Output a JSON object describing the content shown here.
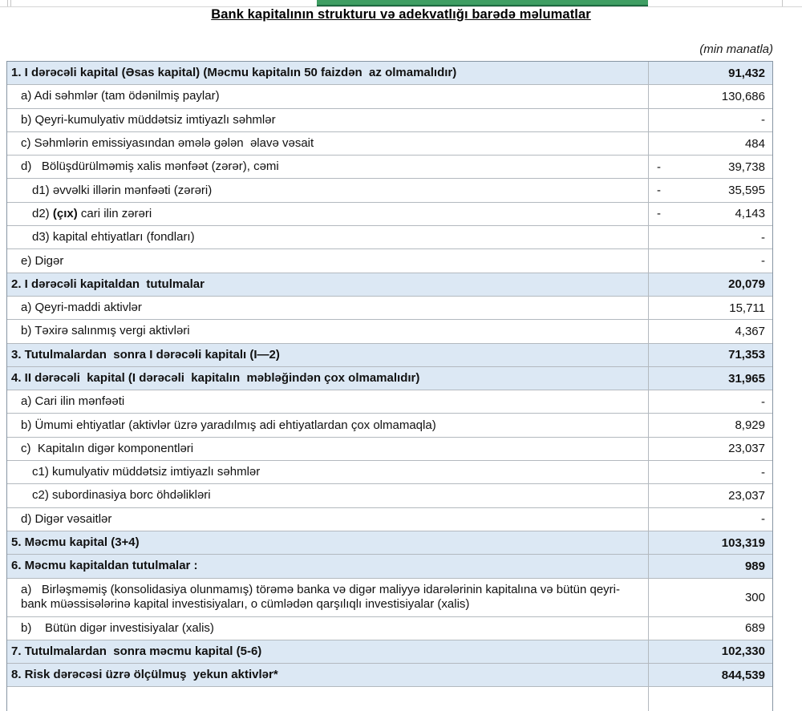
{
  "page": {
    "title": "Bank kapitalının strukturu və adekvatlığı barədə məlumatlar",
    "unit_note": "(min manatla)"
  },
  "colors": {
    "section_row_bg": "#dce8f4",
    "table_border": "#8795a3",
    "grid_border": "#b3b9bf",
    "green_cell_fill": "#3f9e63",
    "green_cell_border": "#1c6a40"
  },
  "table": {
    "rows": [
      {
        "style": "section",
        "indent": 0,
        "segments": [
          {
            "text": "1. I dərəcəli kapital",
            "bold": true
          },
          {
            "text": " (Əsas kapital) (Məcmu kapitalın 50 faizdən  az olmamalıdır)",
            "bold": false
          }
        ],
        "value": "91,432",
        "value_bold": true,
        "neg": false,
        "tall": false
      },
      {
        "style": "item",
        "indent": 1,
        "segments": [
          {
            "text": "a) Adi səhmlər (tam ödənilmiş paylar)",
            "bold": false
          }
        ],
        "value": "130,686",
        "value_bold": false,
        "neg": false,
        "tall": false
      },
      {
        "style": "item",
        "indent": 1,
        "segments": [
          {
            "text": "b) Qeyri-kumulyativ müddətsiz imtiyazlı səhmlər",
            "bold": false
          }
        ],
        "value": "-",
        "value_bold": false,
        "neg": false,
        "tall": false
      },
      {
        "style": "item",
        "indent": 1,
        "segments": [
          {
            "text": "c) Səhmlərin emissiyasından əmələ gələn  əlavə vəsait",
            "bold": false
          }
        ],
        "value": "484",
        "value_bold": false,
        "neg": false,
        "tall": false
      },
      {
        "style": "item",
        "indent": 1,
        "segments": [
          {
            "text": "d)   Bölüşdürülməmiş xalis mənfəət (zərər), cəmi",
            "bold": false
          }
        ],
        "value": "39,738",
        "value_bold": false,
        "neg": true,
        "tall": false
      },
      {
        "style": "item",
        "indent": 2,
        "segments": [
          {
            "text": "d1) əvvəlki illərin mənfəəti (zərəri)",
            "bold": false
          }
        ],
        "value": "35,595",
        "value_bold": false,
        "neg": true,
        "tall": false
      },
      {
        "style": "item",
        "indent": 2,
        "segments": [
          {
            "text": "d2) ",
            "bold": false
          },
          {
            "text": "(çıx)",
            "bold": true
          },
          {
            "text": " cari ilin zərəri",
            "bold": false
          }
        ],
        "value": "4,143",
        "value_bold": false,
        "neg": true,
        "tall": false
      },
      {
        "style": "item",
        "indent": 2,
        "segments": [
          {
            "text": "d3) kapital ehtiyatları (fondları)",
            "bold": false
          }
        ],
        "value": "-",
        "value_bold": false,
        "neg": false,
        "tall": false
      },
      {
        "style": "item",
        "indent": 1,
        "segments": [
          {
            "text": "e) Digər",
            "bold": false
          }
        ],
        "value": "-",
        "value_bold": false,
        "neg": false,
        "tall": false
      },
      {
        "style": "section",
        "indent": 0,
        "segments": [
          {
            "text": "2. I dərəcəli kapitaldan  tutulmalar",
            "bold": true
          }
        ],
        "value": "20,079",
        "value_bold": true,
        "neg": false,
        "tall": false
      },
      {
        "style": "item",
        "indent": 1,
        "segments": [
          {
            "text": "a) Qeyri-maddi aktivlər",
            "bold": false
          }
        ],
        "value": "15,711",
        "value_bold": false,
        "neg": false,
        "tall": false
      },
      {
        "style": "item",
        "indent": 1,
        "segments": [
          {
            "text": "b) Təxirə salınmış vergi aktivləri",
            "bold": false
          }
        ],
        "value": "4,367",
        "value_bold": false,
        "neg": false,
        "tall": false
      },
      {
        "style": "section",
        "indent": 0,
        "segments": [
          {
            "text": "3. Tutulmalardan  sonra I dərəcəli kapitalı (I—2)",
            "bold": true
          }
        ],
        "value": "71,353",
        "value_bold": true,
        "neg": false,
        "tall": false
      },
      {
        "style": "section",
        "indent": 0,
        "segments": [
          {
            "text": "4. II dərəcəli  kapital",
            "bold": true
          },
          {
            "text": " (I dərəcəli  kapitalın  məbləğindən çox olmamalıdır)",
            "bold": false
          }
        ],
        "value": "31,965",
        "value_bold": true,
        "neg": false,
        "tall": false
      },
      {
        "style": "item",
        "indent": 1,
        "segments": [
          {
            "text": "a) Cari ilin mənfəəti",
            "bold": false
          }
        ],
        "value": "-",
        "value_bold": false,
        "neg": false,
        "tall": false
      },
      {
        "style": "item",
        "indent": 1,
        "segments": [
          {
            "text": "b) Ümumi ehtiyatlar (aktivlər üzrə yaradılmış adi ehtiyatlardan çox olmamaqla)",
            "bold": false
          }
        ],
        "value": "8,929",
        "value_bold": false,
        "neg": false,
        "tall": false
      },
      {
        "style": "item",
        "indent": 1,
        "segments": [
          {
            "text": "c)  Kapitalın digər komponentləri",
            "bold": false
          }
        ],
        "value": "23,037",
        "value_bold": false,
        "neg": false,
        "tall": false
      },
      {
        "style": "item",
        "indent": 2,
        "segments": [
          {
            "text": "c1) kumulyativ müddətsiz imtiyazlı səhmlər",
            "bold": false
          }
        ],
        "value": "-",
        "value_bold": false,
        "neg": false,
        "tall": false
      },
      {
        "style": "item",
        "indent": 2,
        "segments": [
          {
            "text": "c2) subordinasiya borc öhdəlikləri",
            "bold": false
          }
        ],
        "value": "23,037",
        "value_bold": false,
        "neg": false,
        "tall": false
      },
      {
        "style": "item",
        "indent": 1,
        "segments": [
          {
            "text": "d) Digər vəsaitlər",
            "bold": false
          }
        ],
        "value": "-",
        "value_bold": false,
        "neg": false,
        "tall": false
      },
      {
        "style": "section",
        "indent": 0,
        "segments": [
          {
            "text": "5. Məcmu kapital (3+4)",
            "bold": true
          }
        ],
        "value": "103,319",
        "value_bold": true,
        "neg": false,
        "tall": false
      },
      {
        "style": "section",
        "indent": 0,
        "segments": [
          {
            "text": "6. Məcmu kapitaldan tutulmalar :",
            "bold": true
          }
        ],
        "value": "989",
        "value_bold": true,
        "neg": false,
        "tall": false
      },
      {
        "style": "item",
        "indent": 1,
        "segments": [
          {
            "text": "a)   Birləşməmiş (konsolidasiya olunmamış) törəmə banka və digər maliyyə idarələrinin kapitalına və bütün qeyri-bank müəssisələrinə kapital investisiyaları, o cümlədən qarşılıqlı investisiyalar (xalis)",
            "bold": false
          }
        ],
        "value": "300",
        "value_bold": false,
        "neg": false,
        "tall": true
      },
      {
        "style": "item",
        "indent": 1,
        "segments": [
          {
            "text": "b)    Bütün digər investisiyalar (xalis)",
            "bold": false
          }
        ],
        "value": "689",
        "value_bold": false,
        "neg": false,
        "tall": false
      },
      {
        "style": "section",
        "indent": 0,
        "segments": [
          {
            "text": "7. Tutulmalardan  sonra məcmu kapital (5-6)",
            "bold": true
          }
        ],
        "value": "102,330",
        "value_bold": true,
        "neg": false,
        "tall": false
      },
      {
        "style": "section",
        "indent": 0,
        "segments": [
          {
            "text": "8. Risk dərəcəsi üzrə ölçülmuş  yekun aktivlər*",
            "bold": true
          }
        ],
        "value": "844,539",
        "value_bold": true,
        "neg": false,
        "tall": false
      }
    ]
  }
}
